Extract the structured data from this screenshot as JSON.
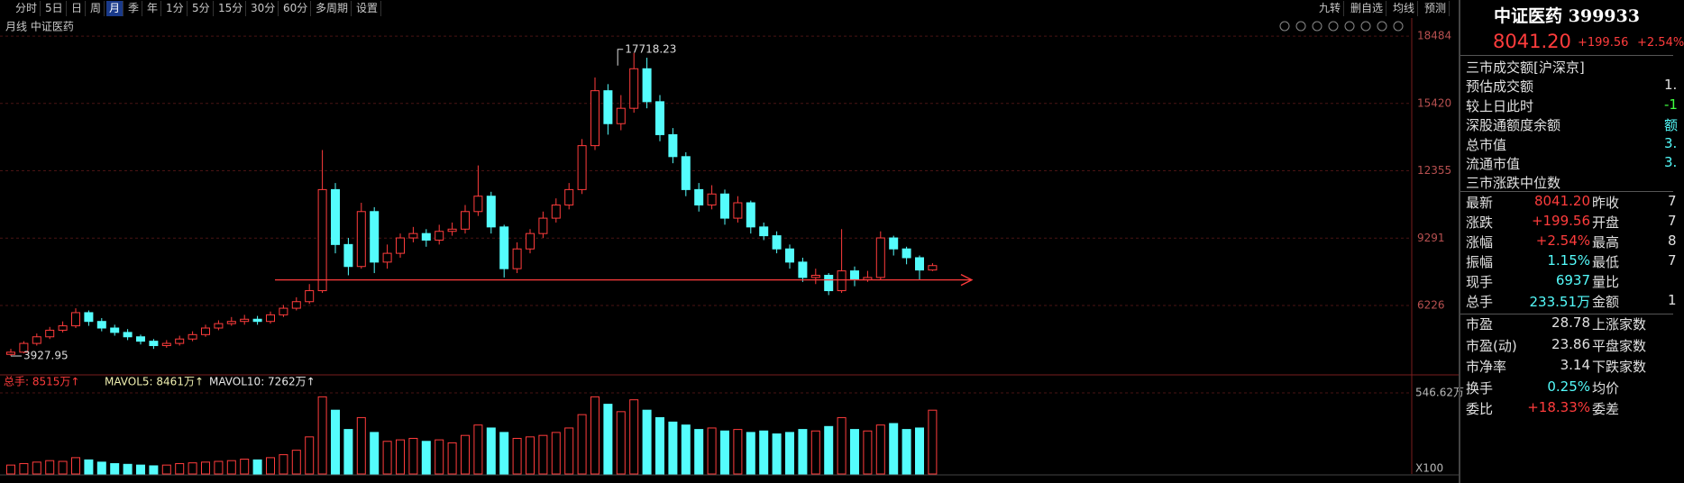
{
  "toolbar": {
    "left": [
      "分时",
      "5日",
      "日",
      "周",
      "月",
      "季",
      "年",
      "1分",
      "5分",
      "15分",
      "30分",
      "60分",
      "多周期",
      "设置"
    ],
    "active": 4,
    "right": [
      "九转",
      "删自选",
      "均线",
      "预测"
    ]
  },
  "chart_data": {
    "type": "candlestick",
    "subtitle": "月线 中证医药",
    "categories": [
      null,
      null,
      null,
      null,
      null,
      null,
      null,
      null,
      null,
      null,
      null,
      null,
      null,
      null,
      null,
      null,
      null,
      null,
      null,
      null,
      null,
      null,
      null,
      null,
      null,
      null,
      null,
      null,
      null,
      null,
      null,
      null,
      null,
      null,
      null,
      null,
      null,
      null,
      null,
      null,
      null,
      null,
      null,
      null,
      null,
      null,
      null,
      null,
      null,
      null,
      null,
      null,
      null,
      null,
      null,
      null,
      null,
      null,
      null,
      null,
      null,
      null,
      null,
      null,
      null,
      null,
      null,
      null,
      null,
      null,
      null,
      null
    ],
    "open": [
      4000,
      4100,
      4500,
      4800,
      5100,
      5300,
      5900,
      5500,
      5200,
      5000,
      4800,
      4600,
      4400,
      4500,
      4700,
      4900,
      5200,
      5400,
      5500,
      5600,
      5500,
      5800,
      6100,
      6400,
      6900,
      11500,
      9000,
      8000,
      10500,
      8200,
      8600,
      9300,
      9500,
      9200,
      9600,
      9700,
      10500,
      11200,
      9800,
      7900,
      8800,
      9500,
      10200,
      10800,
      11500,
      13500,
      16000,
      14500,
      15200,
      17000,
      15500,
      14000,
      13000,
      11500,
      10800,
      11300,
      10200,
      10900,
      9800,
      9400,
      8800,
      8200,
      7500,
      7600,
      6900,
      7800,
      7400,
      7500,
      9300,
      8800,
      8400,
      7840
    ],
    "high": [
      4250,
      4600,
      4950,
      5250,
      5500,
      6100,
      6000,
      5650,
      5350,
      5150,
      4900,
      4700,
      4650,
      4850,
      5050,
      5350,
      5550,
      5700,
      5800,
      5750,
      5950,
      6250,
      6600,
      7200,
      13300,
      11800,
      9300,
      10900,
      10700,
      9000,
      9500,
      9800,
      9700,
      9900,
      10000,
      10800,
      12600,
      11400,
      9900,
      9100,
      9700,
      10500,
      11100,
      11800,
      13800,
      16600,
      16300,
      15800,
      17718.23,
      17500,
      15800,
      14300,
      13200,
      11800,
      11700,
      11500,
      11200,
      11000,
      10000,
      9600,
      9000,
      8400,
      7900,
      7700,
      9700,
      8000,
      7800,
      9600,
      9400,
      8900,
      8500,
      8150
    ],
    "low": [
      3927.95,
      4050,
      4400,
      4700,
      5000,
      5200,
      5300,
      5050,
      4850,
      4650,
      4450,
      4250,
      4300,
      4400,
      4600,
      4800,
      5100,
      5300,
      5350,
      5350,
      5400,
      5700,
      6000,
      6300,
      6800,
      8600,
      7600,
      7900,
      7700,
      7900,
      8400,
      9100,
      8900,
      9000,
      9400,
      9500,
      10300,
      9500,
      7500,
      7700,
      8600,
      9300,
      10000,
      10600,
      11300,
      13300,
      14000,
      14200,
      15000,
      15200,
      13700,
      12700,
      11200,
      10500,
      10600,
      9900,
      10000,
      9500,
      9200,
      8600,
      7900,
      7300,
      7200,
      6700,
      6800,
      7100,
      7300,
      7400,
      8500,
      8100,
      7400,
      7790
    ],
    "close": [
      4100,
      4500,
      4800,
      5100,
      5300,
      5900,
      5500,
      5200,
      5000,
      4800,
      4600,
      4400,
      4500,
      4700,
      4900,
      5200,
      5400,
      5500,
      5600,
      5500,
      5800,
      6100,
      6400,
      6900,
      11500,
      9000,
      8000,
      10500,
      8200,
      8600,
      9300,
      9500,
      9200,
      9600,
      9700,
      10500,
      11200,
      9800,
      7900,
      8800,
      9500,
      10200,
      10800,
      11500,
      13500,
      16000,
      14500,
      15200,
      17000,
      15500,
      14000,
      13000,
      11500,
      10800,
      11300,
      10200,
      10900,
      9800,
      9400,
      8800,
      8200,
      7500,
      7600,
      6900,
      7800,
      7400,
      7500,
      9300,
      8800,
      8400,
      7840,
      8041.2
    ],
    "up_color": "#ff3c3c",
    "down_color": "#54fcfc",
    "ylim": [
      3150,
      18980
    ],
    "yticks": [
      6226,
      9291,
      12355,
      15420,
      18484
    ],
    "grid": true,
    "high_label": "17718.23",
    "low_label": "3927.95",
    "support_level": 7390,
    "volume": {
      "legend": [
        "总手: 8515万↑",
        "MAVOL5: 8461万↑",
        "MAVOL10: 7262万↑"
      ],
      "legend_colors": [
        "#ff3c3c",
        "#f0f0b0",
        "#e8e8e8"
      ],
      "values": [
        60,
        70,
        80,
        90,
        85,
        110,
        95,
        80,
        70,
        65,
        60,
        55,
        60,
        70,
        75,
        80,
        85,
        90,
        100,
        95,
        110,
        130,
        160,
        250,
        520,
        430,
        300,
        380,
        280,
        220,
        230,
        240,
        220,
        230,
        210,
        260,
        330,
        310,
        280,
        240,
        250,
        260,
        280,
        310,
        400,
        520,
        470,
        420,
        500,
        430,
        380,
        350,
        330,
        300,
        310,
        290,
        300,
        280,
        290,
        270,
        280,
        300,
        290,
        320,
        380,
        300,
        290,
        330,
        340,
        300,
        310,
        430
      ],
      "ylim": [
        0,
        668
      ],
      "yticks": [
        {
          "value": 546.62,
          "label": "546.62万"
        }
      ],
      "unit_label": "X100"
    }
  },
  "quote_panel": {
    "title": "中证医药 399933",
    "price": "8041.20",
    "change": "+199.56",
    "change_pct": "+2.54%",
    "info_rows": [
      [
        "三市成交额[沪深京]"
      ],
      [
        "预估成交额",
        "1."
      ],
      [
        "较上日此时",
        "-1"
      ],
      [
        "深股通额度余额",
        "额"
      ],
      [
        "总市值",
        "3."
      ],
      [
        "流通市值",
        "3."
      ],
      [
        "三市涨跌中位数"
      ]
    ],
    "info_colors": [
      "#e0e0e0",
      "#e0e0e0",
      "#40ff40",
      "#54fcfc",
      "#54fcfc",
      "#54fcfc",
      "#e0e0e0"
    ],
    "stats": [
      [
        "最新",
        "8041.20",
        "昨收",
        "7"
      ],
      [
        "涨跌",
        "+199.56",
        "开盘",
        "7"
      ],
      [
        "涨幅",
        "+2.54%",
        "最高",
        "8"
      ],
      [
        "振幅",
        "1.15%",
        "最低",
        "7"
      ],
      [
        "现手",
        "6937",
        "量比"
      ],
      [
        "总手",
        "233.51万",
        "金额",
        "1"
      ]
    ],
    "stats_colors": [
      "#ff3c3c",
      "#ff3c3c",
      "#ff3c3c",
      "#54fcfc",
      "#54fcfc",
      "#54fcfc"
    ],
    "valuation": [
      [
        "市盈",
        "28.78",
        "上涨家数"
      ],
      [
        "市盈(动)",
        "23.86",
        "平盘家数"
      ],
      [
        "市净率",
        "3.14",
        "下跌家数"
      ],
      [
        "换手",
        "0.25%",
        "均价"
      ],
      [
        "委比",
        "+18.33%",
        "委差"
      ]
    ],
    "valuation_colors": [
      "#e0e0e0",
      "#e0e0e0",
      "#e0e0e0",
      "#54fcfc",
      "#ff3c3c"
    ]
  }
}
